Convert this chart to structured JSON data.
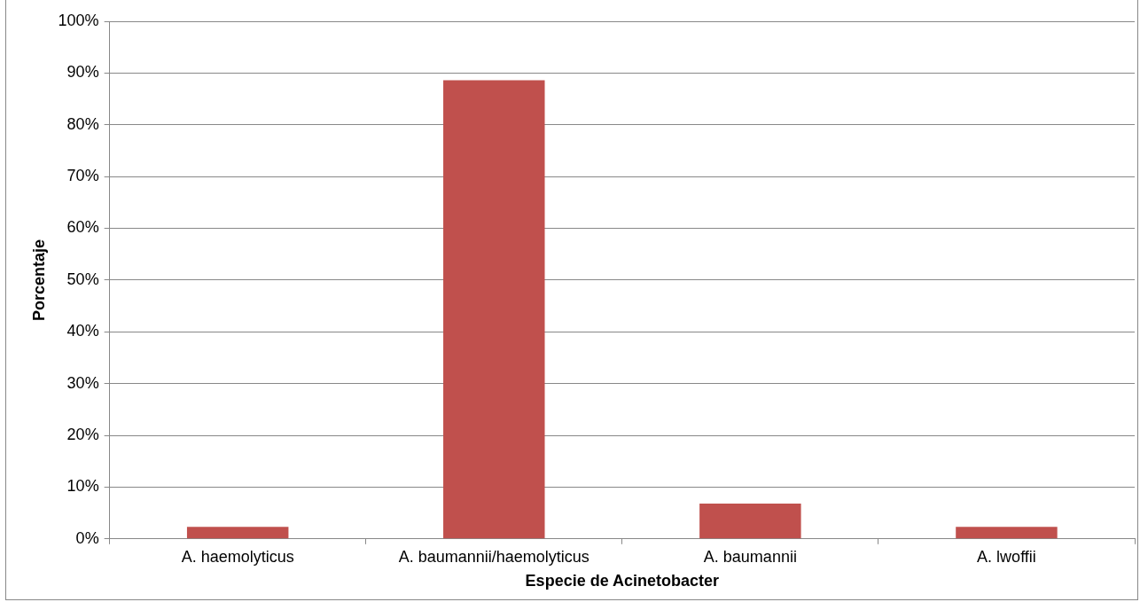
{
  "chart_data": {
    "type": "bar",
    "xlabel": "Especie de Acinetobacter",
    "ylabel": "Porcentaje",
    "categories": [
      "A. haemolyticus",
      "A. baumannii/haemolyticus",
      "A. baumannii",
      "A. lwoffii"
    ],
    "values": [
      2.3,
      88.6,
      6.8,
      2.3
    ],
    "color": "#c0504d",
    "ylim": [
      0,
      100
    ],
    "yticks": [
      {
        "value": 0,
        "label": "0%"
      },
      {
        "value": 10,
        "label": "10%"
      },
      {
        "value": 20,
        "label": "20%"
      },
      {
        "value": 30,
        "label": "30%"
      },
      {
        "value": 40,
        "label": "40%"
      },
      {
        "value": 50,
        "label": "50%"
      },
      {
        "value": 60,
        "label": "60%"
      },
      {
        "value": 70,
        "label": "70%"
      },
      {
        "value": 80,
        "label": "80%"
      },
      {
        "value": 90,
        "label": "90%"
      },
      {
        "value": 100,
        "label": "100%"
      }
    ],
    "grid": "y",
    "legend": false
  }
}
